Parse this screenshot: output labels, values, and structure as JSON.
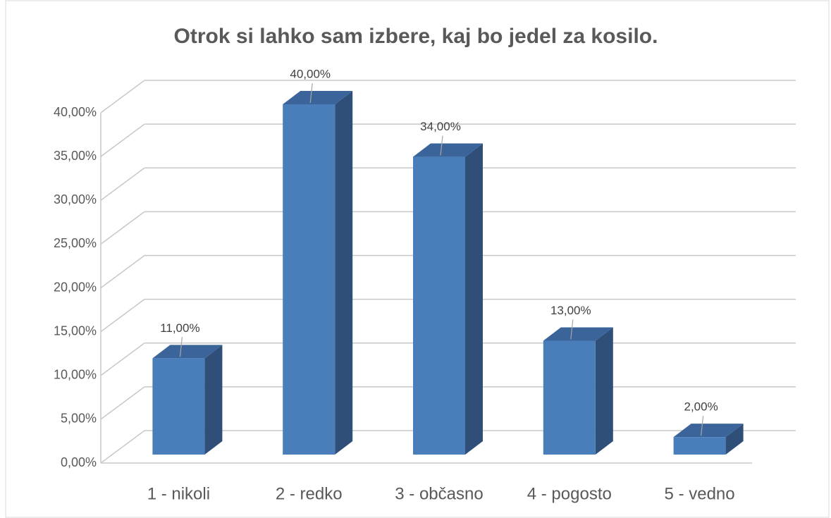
{
  "chart_data": {
    "type": "bar3d",
    "title": "Otrok si lahko sam izbere, kaj bo jedel za kosilo.",
    "categories": [
      "1 - nikoli",
      "2 - redko",
      "3 - občasno",
      "4 - pogosto",
      "5 - vedno"
    ],
    "values": [
      11,
      40,
      34,
      13,
      2
    ],
    "value_labels": [
      "11,00%",
      "40,00%",
      "34,00%",
      "13,00%",
      "2,00%"
    ],
    "color": "#4a7ebb",
    "ylim": [
      0,
      40
    ],
    "yticks": [
      {
        "value": 0,
        "label": "0,00%"
      },
      {
        "value": 5,
        "label": "5,00%"
      },
      {
        "value": 10,
        "label": "10,00%"
      },
      {
        "value": 15,
        "label": "15,00%"
      },
      {
        "value": 20,
        "label": "20,00%"
      },
      {
        "value": 25,
        "label": "25,00%"
      },
      {
        "value": 30,
        "label": "30,00%"
      },
      {
        "value": 35,
        "label": "35,00%"
      },
      {
        "value": 40,
        "label": "40,00%"
      }
    ],
    "grid": true
  }
}
